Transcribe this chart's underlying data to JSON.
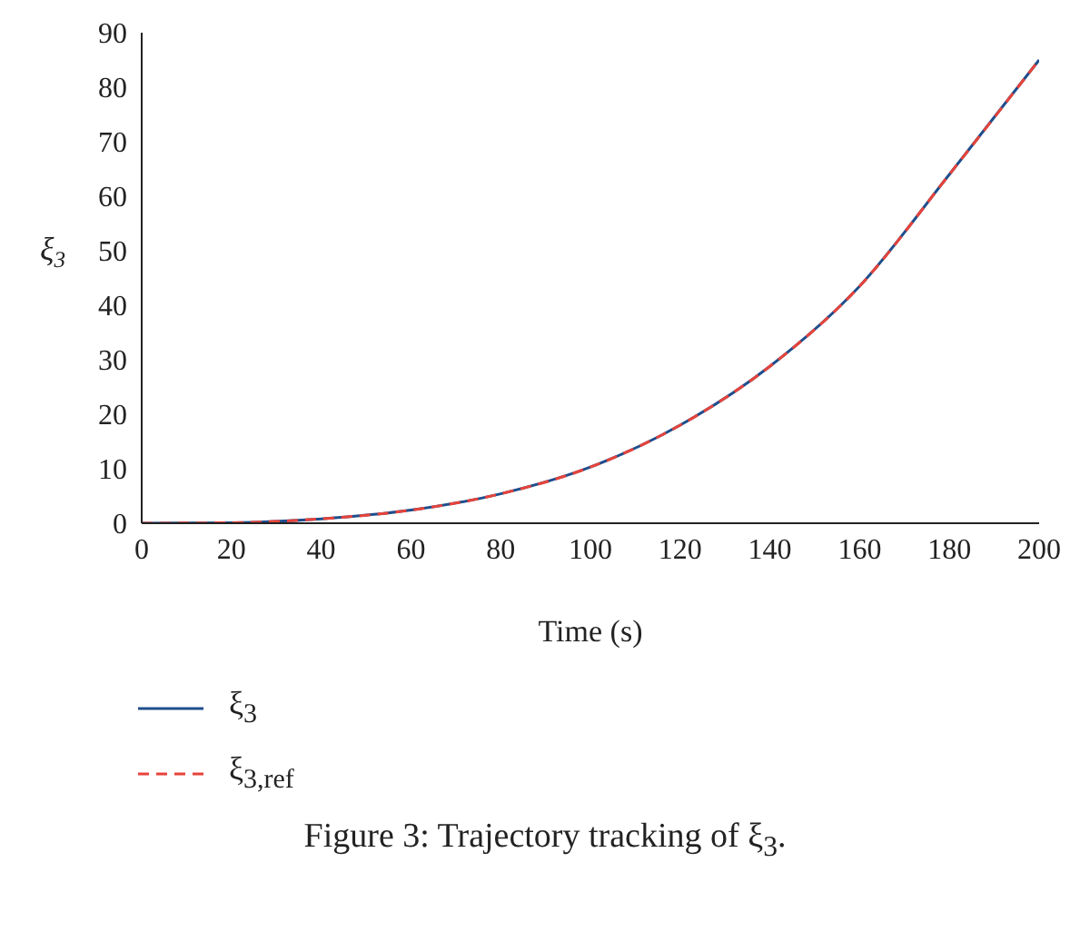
{
  "chart_data": {
    "type": "line",
    "xlabel": "Time (s)",
    "ylabel": "ξ$_{3}$",
    "x": [
      0,
      20,
      40,
      60,
      80,
      100,
      120,
      140,
      160,
      180,
      200
    ],
    "series": [
      {
        "name": "ξ$_{3}$",
        "color": "#1f4e8c",
        "line_style": "solid",
        "values": [
          0,
          0.1,
          0.8,
          2.4,
          5.4,
          10.3,
          18,
          28.8,
          43.5,
          64,
          85
        ]
      },
      {
        "name": "ξ$_{3,ref}$",
        "color": "#e8433a",
        "line_style": "dashed",
        "values": [
          0,
          0.1,
          0.8,
          2.4,
          5.4,
          10.3,
          18,
          28.8,
          43.5,
          64,
          85
        ]
      }
    ],
    "xlim": [
      0,
      200
    ],
    "xticks": [
      0,
      20,
      40,
      60,
      80,
      100,
      120,
      140,
      160,
      180,
      200
    ],
    "ylim": [
      0,
      90
    ],
    "yticks": [
      0,
      10,
      20,
      30,
      40,
      50,
      60,
      70,
      80,
      90
    ],
    "grid": false,
    "legend": "bottom",
    "marker": "none",
    "annotations": [
      "Figure 3: Trajectory tracking of ξ$_{3}$."
    ]
  }
}
